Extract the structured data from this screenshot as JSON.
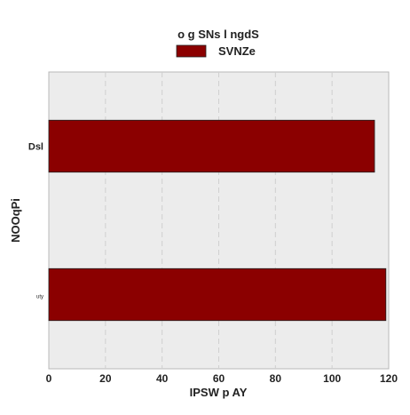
{
  "chart_data": {
    "type": "bar",
    "orientation": "horizontal",
    "title": "o g SNs l ngdS",
    "xlabel": "IPSW p AY",
    "ylabel": "NOOqPi",
    "categories": [
      "Dsl",
      "uty"
    ],
    "series": [
      {
        "name": "SVNZe",
        "values": [
          115,
          119
        ],
        "color": "#8b0000"
      }
    ],
    "xlim": [
      0,
      120
    ],
    "xticks": [
      0,
      20,
      40,
      60,
      80,
      100,
      120
    ],
    "grid": true,
    "legend": "top-center",
    "colors": {
      "plot_background": "#ececec",
      "grid": "#d0d0d0",
      "bar_edge": "#222222"
    }
  }
}
